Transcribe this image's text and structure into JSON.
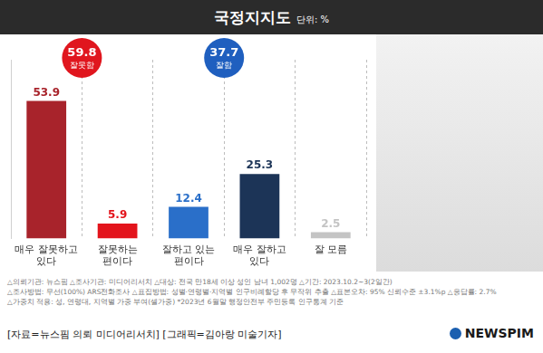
{
  "chart_data": {
    "type": "bar",
    "title": "국정지지도",
    "subtitle": "단위: %",
    "categories": [
      "매우 잘못하고 있다",
      "잘못하는 편이다",
      "잘하고 있는 편이다",
      "매우 잘하고 있다",
      "잘 모름"
    ],
    "values": [
      53.9,
      5.9,
      12.4,
      25.3,
      2.5
    ],
    "colors": [
      "#a8232b",
      "#e3141c",
      "#2a6fc9",
      "#1c3457",
      "#c4c4c4"
    ],
    "ylim": [
      0,
      70
    ],
    "grid": false,
    "data_labels": true,
    "tick_labels": "x",
    "annotations": [
      {
        "value": 59.8,
        "label": "잘못함",
        "color": "#e0161e"
      },
      {
        "value": 37.7,
        "label": "잘함",
        "color": "#1f5fbf"
      }
    ],
    "notes": [
      "△의뢰기관: 뉴스핌 △조사기관: 미디어리서치 △대상: 전국 만18세 이상 성인 남녀 1,002명 △기간: 2023.10.2~3(2일간)",
      "△조사방법: 무선(100%) ARS전화조사 △표집방법: 성별·연령별·지역별 인구비례할당 후 무작위 추출 △표본오차: 95% 신뢰수준 ±3.1%p △응답률: 2.7%",
      "△가중치 적용: 성, 연령대, 지역별 가중 부여(셀가중) *2023년 6월말 행정안전부 주민등록 인구통계 기준"
    ],
    "source": "[자료=뉴스핌 의뢰 미디어리서치] [그래픽=김아랑 미술기자]",
    "logo": "NEWSPIM"
  }
}
